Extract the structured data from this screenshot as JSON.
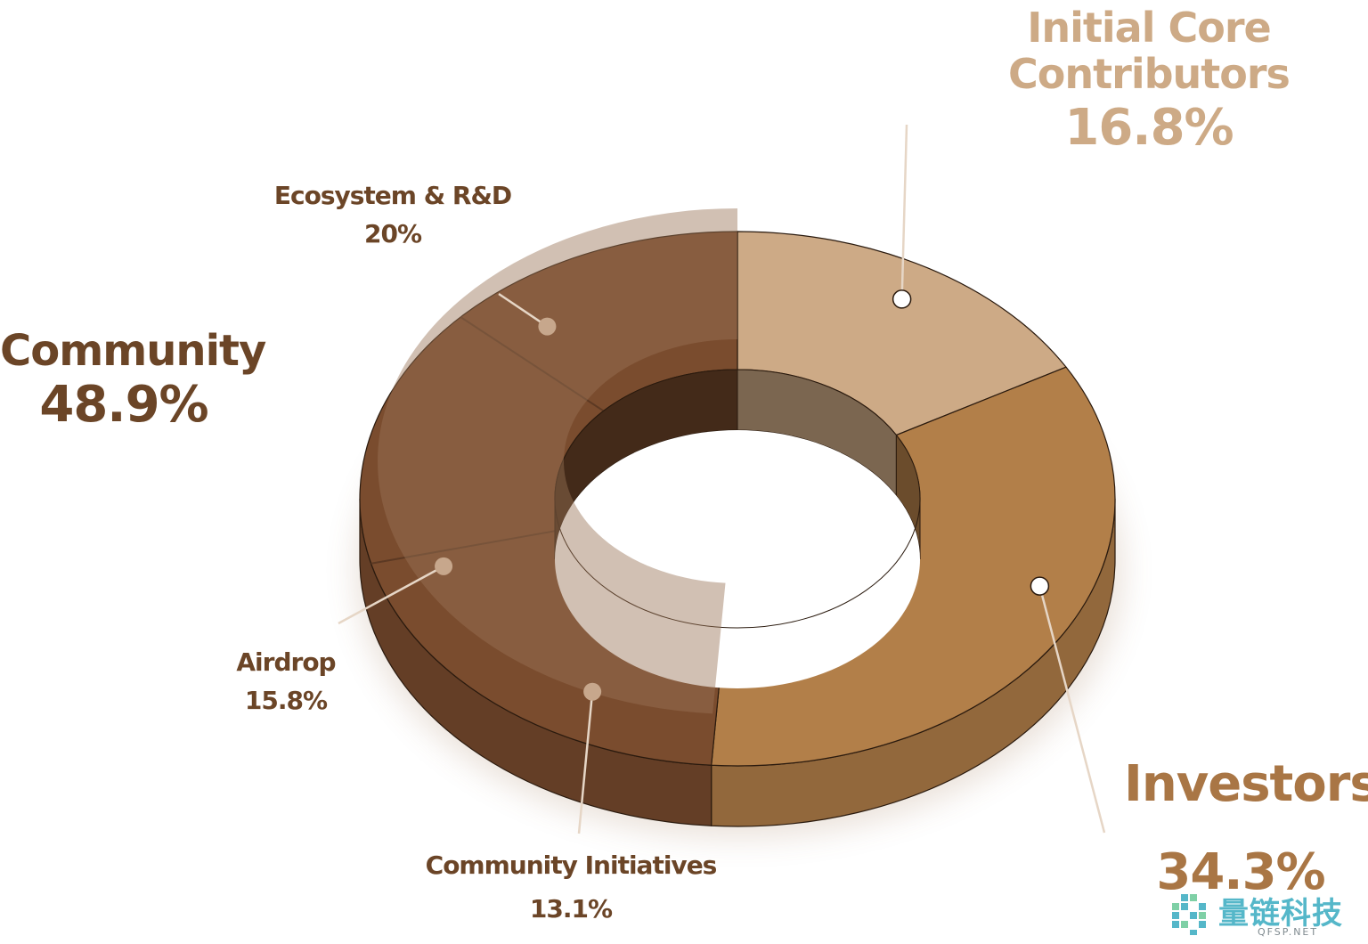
{
  "chart_data": {
    "type": "pie",
    "style": "3d-donut",
    "title": "",
    "colors": {
      "initial_core_contributors": "#cdaa86",
      "investors": "#b27f49",
      "community": "#7a4c2e",
      "community_label": "#6b4527",
      "sub_label": "#6b4527"
    },
    "slices": [
      {
        "label": "Initial Core Contributors",
        "value": 16.8,
        "display": "16.8%"
      },
      {
        "label": "Investors",
        "value": 34.3,
        "display": "34.3%"
      },
      {
        "label": "Community",
        "value": 48.9,
        "display": "48.9%"
      }
    ],
    "sub_slices": [
      {
        "parent": "Community",
        "label": "Ecosystem & R&D",
        "value": 20,
        "display": "20%"
      },
      {
        "parent": "Community",
        "label": "Airdrop",
        "value": 15.8,
        "display": "15.8%"
      },
      {
        "parent": "Community",
        "label": "Community Initiatives",
        "value": 13.1,
        "display": "13.1%"
      }
    ]
  },
  "labels": {
    "icc_line1": "Initial Core",
    "icc_line2": "Contributors",
    "icc_pct": "16.8%",
    "investors": "Investors",
    "investors_pct": "34.3%",
    "community": "Community",
    "community_pct": "48.9%",
    "eco": "Ecosystem & R&D",
    "eco_pct": "20%",
    "airdrop": "Airdrop",
    "airdrop_pct": "15.8%",
    "ci": "Community Initiatives",
    "ci_pct": "13.1%"
  },
  "watermark": {
    "chinese": "量链科技",
    "english": "QFSP.NET",
    "icon": "pixel-logo-icon"
  }
}
